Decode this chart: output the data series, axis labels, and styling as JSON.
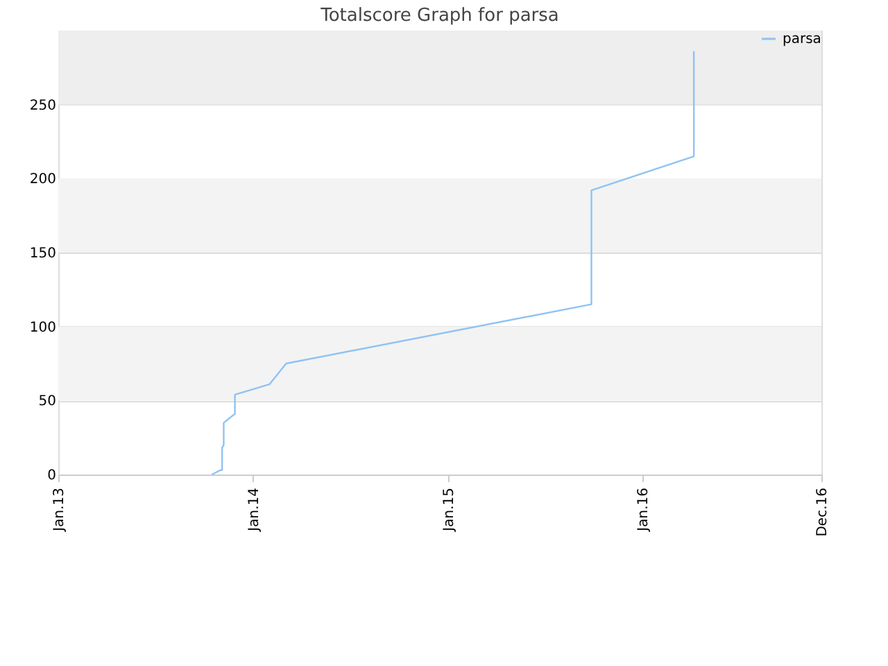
{
  "chart_data": {
    "type": "line",
    "title": "Totalscore Graph for parsa",
    "x": [
      "2013-10-16",
      "2013-11-01",
      "2013-11-04",
      "2013-11-04",
      "2013-11-07",
      "2013-11-07",
      "2013-11-28",
      "2013-11-28",
      "2014-02-01",
      "2014-03-04",
      "2015-09-27",
      "2015-09-27",
      "2016-04-06",
      "2016-04-06"
    ],
    "series": [
      {
        "name": "parsa",
        "color": "#90c2f4",
        "values": [
          0,
          3,
          3,
          18,
          20,
          35,
          41,
          54,
          61,
          75,
          115,
          192,
          215,
          286
        ]
      }
    ],
    "xlim": [
      "2013-01-01",
      "2016-12-01"
    ],
    "xticks": [
      {
        "value": "2013-01-01",
        "label": "Jan.13"
      },
      {
        "value": "2014-01-01",
        "label": "Jan.14"
      },
      {
        "value": "2015-01-01",
        "label": "Jan.15"
      },
      {
        "value": "2016-01-01",
        "label": "Jan.16"
      },
      {
        "value": "2016-12-01",
        "label": "Dec.16"
      }
    ],
    "ylim": [
      0,
      300
    ],
    "yticks": [
      0,
      50,
      100,
      150,
      200,
      250
    ],
    "bands": [
      {
        "axis": "y",
        "from": 50,
        "to": 100,
        "color": "#f3f3f3"
      },
      {
        "axis": "y",
        "from": 150,
        "to": 200,
        "color": "#f3f3f3"
      },
      {
        "axis": "y",
        "from": 250,
        "to": 300,
        "color": "#eeeeee"
      }
    ],
    "grid": "y",
    "legend": "top right",
    "marker": "none",
    "line_style": "solid"
  }
}
